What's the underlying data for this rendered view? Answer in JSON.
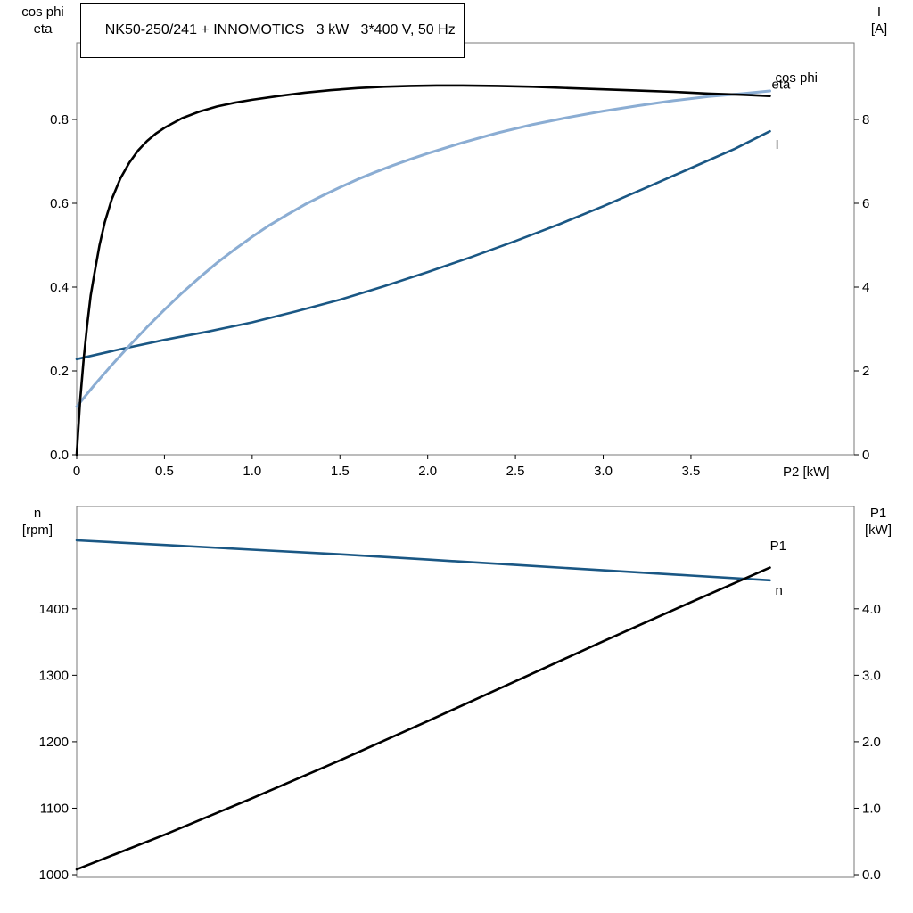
{
  "colors": {
    "black": "#000000",
    "dark_blue": "#1a5784",
    "light_blue": "#8badd3",
    "frame": "#7a7a7a",
    "tick": "#000000"
  },
  "chart_data": [
    {
      "type": "line",
      "title": "NK50-250/241 + INNOMOTICS   3 kW   3*400 V, 50 Hz",
      "xlabel": "P2 [kW]",
      "ylabel_left_lines": [
        "cos phi",
        "eta"
      ],
      "ylabel_right_lines": [
        "I",
        "[A]"
      ],
      "xlim": [
        0,
        4.43
      ],
      "xticks": {
        "values": [
          0,
          0.5,
          1,
          1.5,
          2,
          2.5,
          3,
          3.5
        ],
        "labels": [
          "0",
          "0.5",
          "1.0",
          "1.5",
          "2.0",
          "2.5",
          "3.0",
          "3.5"
        ]
      },
      "ylim_left": [
        0,
        0.983
      ],
      "yticks_left": {
        "values": [
          0,
          0.2,
          0.4,
          0.6,
          0.8
        ],
        "labels": [
          "0.0",
          "0.2",
          "0.4",
          "0.6",
          "0.8"
        ]
      },
      "ylim_right": [
        0,
        9.83
      ],
      "yticks_right": {
        "values": [
          0,
          2,
          4,
          6,
          8
        ],
        "labels": [
          "0",
          "2",
          "4",
          "6",
          "8"
        ]
      },
      "grid": false,
      "series": [
        {
          "id": "current",
          "label": "I",
          "axis": "right",
          "color": "dark_blue",
          "label_color": "dark_blue",
          "width": 2.6,
          "label_at": [
            3.96,
            7.4
          ],
          "points": [
            [
              0,
              2.28
            ],
            [
              0.25,
              2.52
            ],
            [
              0.5,
              2.74
            ],
            [
              0.75,
              2.94
            ],
            [
              1,
              3.16
            ],
            [
              1.25,
              3.42
            ],
            [
              1.5,
              3.7
            ],
            [
              1.75,
              4.02
            ],
            [
              2,
              4.36
            ],
            [
              2.25,
              4.72
            ],
            [
              2.5,
              5.1
            ],
            [
              2.75,
              5.5
            ],
            [
              3,
              5.93
            ],
            [
              3.25,
              6.38
            ],
            [
              3.5,
              6.84
            ],
            [
              3.75,
              7.3
            ],
            [
              3.95,
              7.72
            ]
          ]
        },
        {
          "id": "cos-phi",
          "label": "cos phi",
          "axis": "left",
          "color": "light_blue",
          "label_color": "light_blue",
          "width": 3,
          "label_at": [
            3.96,
            0.9
          ],
          "points": [
            [
              0,
              0.115
            ],
            [
              0.1,
              0.166
            ],
            [
              0.2,
              0.214
            ],
            [
              0.3,
              0.26
            ],
            [
              0.4,
              0.304
            ],
            [
              0.5,
              0.346
            ],
            [
              0.6,
              0.386
            ],
            [
              0.7,
              0.423
            ],
            [
              0.8,
              0.458
            ],
            [
              0.9,
              0.49
            ],
            [
              1,
              0.52
            ],
            [
              1.1,
              0.548
            ],
            [
              1.2,
              0.573
            ],
            [
              1.3,
              0.597
            ],
            [
              1.4,
              0.618
            ],
            [
              1.5,
              0.638
            ],
            [
              1.6,
              0.657
            ],
            [
              1.7,
              0.674
            ],
            [
              1.8,
              0.69
            ],
            [
              1.9,
              0.705
            ],
            [
              2,
              0.719
            ],
            [
              2.2,
              0.745
            ],
            [
              2.4,
              0.768
            ],
            [
              2.6,
              0.788
            ],
            [
              2.8,
              0.805
            ],
            [
              3,
              0.82
            ],
            [
              3.2,
              0.833
            ],
            [
              3.4,
              0.845
            ],
            [
              3.6,
              0.855
            ],
            [
              3.8,
              0.862
            ],
            [
              3.95,
              0.868
            ]
          ]
        },
        {
          "id": "eta",
          "label": "eta",
          "axis": "left",
          "color": "black",
          "label_color": "black",
          "width": 2.6,
          "label_at": [
            3.94,
            0.884
          ],
          "points": [
            [
              0,
              0
            ],
            [
              0.02,
              0.13
            ],
            [
              0.04,
              0.23
            ],
            [
              0.06,
              0.31
            ],
            [
              0.08,
              0.38
            ],
            [
              0.1,
              0.43
            ],
            [
              0.13,
              0.5
            ],
            [
              0.16,
              0.555
            ],
            [
              0.2,
              0.61
            ],
            [
              0.25,
              0.66
            ],
            [
              0.3,
              0.697
            ],
            [
              0.35,
              0.726
            ],
            [
              0.4,
              0.748
            ],
            [
              0.45,
              0.766
            ],
            [
              0.5,
              0.78
            ],
            [
              0.6,
              0.803
            ],
            [
              0.7,
              0.819
            ],
            [
              0.8,
              0.831
            ],
            [
              0.9,
              0.84
            ],
            [
              1,
              0.847
            ],
            [
              1.15,
              0.856
            ],
            [
              1.3,
              0.864
            ],
            [
              1.45,
              0.87
            ],
            [
              1.6,
              0.875
            ],
            [
              1.75,
              0.878
            ],
            [
              1.9,
              0.88
            ],
            [
              2.05,
              0.881
            ],
            [
              2.2,
              0.881
            ],
            [
              2.4,
              0.88
            ],
            [
              2.6,
              0.878
            ],
            [
              2.8,
              0.875
            ],
            [
              3,
              0.872
            ],
            [
              3.2,
              0.869
            ],
            [
              3.4,
              0.866
            ],
            [
              3.6,
              0.862
            ],
            [
              3.8,
              0.859
            ],
            [
              3.95,
              0.856
            ]
          ]
        }
      ]
    },
    {
      "type": "line",
      "title": "",
      "xlabel": "",
      "ylabel_left_lines": [
        "n",
        "[rpm]"
      ],
      "ylabel_right_lines": [
        "P1",
        "[kW]"
      ],
      "xlim": [
        0,
        4.43
      ],
      "xticks": {
        "values": [],
        "labels": []
      },
      "ylim_left": [
        996,
        1554
      ],
      "yticks_left": {
        "values": [
          1000,
          1100,
          1200,
          1300,
          1400
        ],
        "labels": [
          "1000",
          "1100",
          "1200",
          "1300",
          "1400"
        ]
      },
      "ylim_right": [
        -0.04,
        5.54
      ],
      "yticks_right": {
        "values": [
          0,
          1,
          2,
          3,
          4
        ],
        "labels": [
          "0.0",
          "1.0",
          "2.0",
          "3.0",
          "4.0"
        ]
      },
      "grid": false,
      "series": [
        {
          "id": "speed",
          "label": "n",
          "axis": "left",
          "color": "dark_blue",
          "label_color": "dark_blue",
          "width": 2.6,
          "label_at": [
            3.96,
            1428
          ],
          "points": [
            [
              0,
              1503
            ],
            [
              0.5,
              1496
            ],
            [
              1,
              1489
            ],
            [
              1.5,
              1482
            ],
            [
              2,
              1474
            ],
            [
              2.5,
              1466
            ],
            [
              3,
              1458
            ],
            [
              3.5,
              1450
            ],
            [
              3.95,
              1443
            ]
          ]
        },
        {
          "id": "p1",
          "label": "P1",
          "axis": "right",
          "color": "black",
          "label_color": "black",
          "width": 2.6,
          "label_at": [
            3.93,
            4.95
          ],
          "points": [
            [
              0,
              0.08
            ],
            [
              0.5,
              0.6
            ],
            [
              1,
              1.15
            ],
            [
              1.5,
              1.72
            ],
            [
              2,
              2.31
            ],
            [
              2.5,
              2.91
            ],
            [
              3,
              3.51
            ],
            [
              3.5,
              4.1
            ],
            [
              3.95,
              4.62
            ]
          ]
        }
      ]
    }
  ]
}
